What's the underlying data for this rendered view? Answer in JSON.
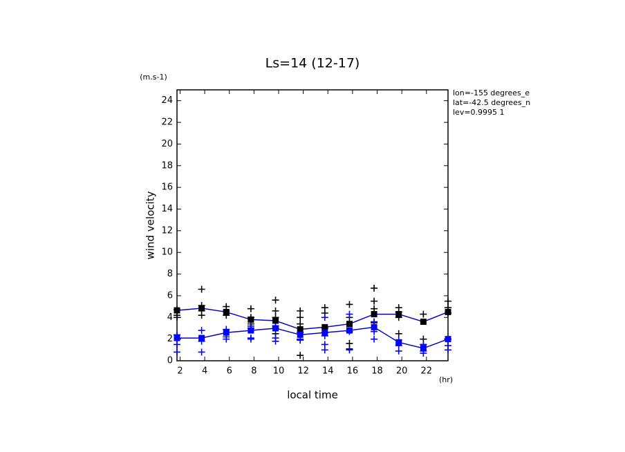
{
  "chart_data": {
    "type": "line",
    "title": "Ls=14 (12-17)",
    "y_unit": "(m.s-1)",
    "ylabel": "wind velocity",
    "xlabel": "local time",
    "x_unit": "(hr)",
    "annotations": [
      "lon=-155 degrees_e",
      "lat=-42.5 degrees_n",
      "lev=0.9995 1"
    ],
    "xlim": [
      1.75,
      23.75
    ],
    "ylim": [
      0,
      25
    ],
    "xticks": [
      2,
      4,
      6,
      8,
      10,
      12,
      14,
      16,
      18,
      20,
      22
    ],
    "yticks": [
      0,
      2,
      4,
      6,
      8,
      10,
      12,
      14,
      16,
      18,
      20,
      22,
      24
    ],
    "series": [
      {
        "color": "#000000",
        "marker": "cross",
        "line": false,
        "x": [
          1.75,
          1.75,
          1.75,
          3.75,
          3.75,
          3.75,
          3.75,
          5.75,
          5.75,
          5.75,
          7.75,
          7.75,
          7.75,
          7.75,
          9.75,
          9.75,
          9.75,
          9.75,
          9.75,
          11.75,
          11.75,
          11.75,
          11.75,
          13.75,
          13.75,
          13.75,
          13.75,
          15.75,
          15.75,
          15.75,
          15.75,
          17.75,
          17.75,
          17.75,
          17.75,
          19.75,
          19.75,
          19.75,
          19.75,
          21.75,
          21.75,
          21.75,
          23.75,
          23.75,
          23.75
        ],
        "values": [
          4.7,
          4.2,
          4.0,
          6.6,
          5.1,
          4.6,
          4.2,
          5.0,
          4.6,
          4.2,
          4.8,
          4.0,
          3.4,
          3.0,
          5.6,
          4.6,
          4.0,
          3.0,
          2.5,
          4.6,
          4.0,
          3.4,
          0.5,
          4.9,
          4.4,
          3.0,
          2.6,
          5.2,
          4.0,
          1.6,
          1.1,
          6.7,
          5.5,
          4.8,
          3.5,
          4.9,
          4.5,
          4.0,
          2.5,
          4.3,
          2.0,
          1.5,
          5.5,
          4.9,
          4.4
        ]
      },
      {
        "color": "#0000ff",
        "marker": "cross",
        "line": false,
        "x": [
          1.75,
          1.75,
          1.75,
          3.75,
          3.75,
          3.75,
          5.75,
          5.75,
          5.75,
          7.75,
          7.75,
          7.75,
          9.75,
          9.75,
          9.75,
          11.75,
          11.75,
          11.75,
          13.75,
          13.75,
          13.75,
          13.75,
          15.75,
          15.75,
          15.75,
          17.75,
          17.75,
          17.75,
          19.75,
          19.75,
          19.75,
          21.75,
          21.75,
          21.75,
          23.75,
          23.75,
          23.75
        ],
        "values": [
          2.4,
          1.5,
          0.8,
          2.8,
          1.8,
          0.8,
          2.9,
          2.2,
          2.0,
          3.2,
          2.1,
          2.0,
          3.2,
          2.1,
          1.8,
          2.6,
          2.0,
          1.9,
          4.0,
          2.3,
          1.5,
          1.0,
          4.3,
          2.7,
          1.0,
          3.6,
          2.7,
          2.0,
          1.9,
          1.4,
          0.9,
          1.5,
          0.9,
          0.7,
          2.0,
          1.4,
          1.0
        ]
      },
      {
        "color": "#0000cc",
        "marker": "square",
        "marker_color": "#000000",
        "line": true,
        "x": [
          1.75,
          3.75,
          5.75,
          7.75,
          9.75,
          11.75,
          13.75,
          15.75,
          17.75,
          19.75,
          21.75,
          23.75
        ],
        "values": [
          4.65,
          4.85,
          4.5,
          3.8,
          3.7,
          2.9,
          3.1,
          3.4,
          4.3,
          4.3,
          3.6,
          4.5
        ]
      },
      {
        "color": "#0000cc",
        "marker": "square",
        "marker_color": "#0000ff",
        "line": true,
        "x": [
          1.75,
          3.75,
          5.75,
          7.75,
          9.75,
          11.75,
          13.75,
          15.75,
          17.75,
          19.75,
          21.75,
          23.75
        ],
        "values": [
          2.1,
          2.1,
          2.6,
          2.8,
          3.0,
          2.4,
          2.6,
          2.8,
          3.1,
          1.7,
          1.15,
          2.0
        ]
      }
    ]
  }
}
